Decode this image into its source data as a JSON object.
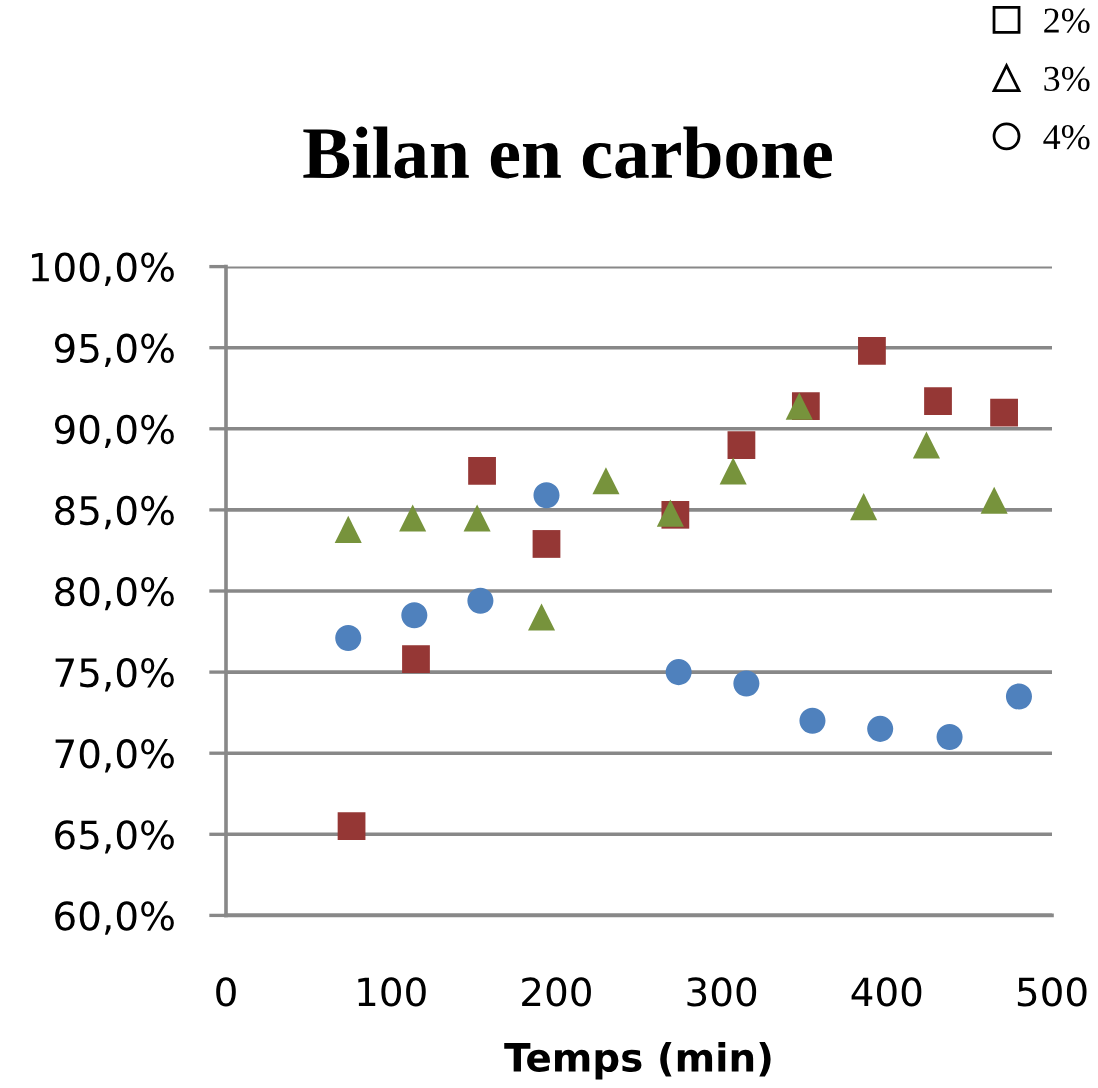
{
  "chart_data": {
    "type": "scatter",
    "title": "Bilan en carbone",
    "xlabel": "Temps (min)",
    "xlim": [
      0,
      500
    ],
    "xticks": [
      0,
      100,
      200,
      300,
      400,
      500
    ],
    "ylim": [
      60,
      100
    ],
    "yticks": [
      {
        "value": 60,
        "label": "60,0%"
      },
      {
        "value": 65,
        "label": "65,0%"
      },
      {
        "value": 70,
        "label": "70,0%"
      },
      {
        "value": 75,
        "label": "75,0%"
      },
      {
        "value": 80,
        "label": "80,0%"
      },
      {
        "value": 85,
        "label": "85,0%"
      },
      {
        "value": 90,
        "label": "90,0%"
      },
      {
        "value": 95,
        "label": "95,0%"
      },
      {
        "value": 100,
        "label": "100,0%"
      }
    ],
    "grid": "y",
    "legend": "top right",
    "series": [
      {
        "name": "2%",
        "color": "#953735",
        "marker": "square",
        "x": [
          76,
          115,
          155,
          194,
          272,
          312,
          351,
          391,
          431,
          471
        ],
        "values": [
          65.5,
          75.8,
          87.4,
          82.9,
          84.7,
          89.0,
          91.4,
          94.8,
          91.7,
          91.0
        ]
      },
      {
        "name": "3%",
        "color": "#77933c",
        "marker": "triangle",
        "x": [
          74,
          113,
          152,
          191,
          230,
          269,
          307,
          347,
          386,
          424,
          465
        ],
        "values": [
          83.8,
          84.5,
          84.5,
          78.4,
          86.8,
          84.8,
          87.4,
          91.4,
          85.2,
          89.0,
          85.6
        ]
      },
      {
        "name": "4%",
        "color": "#4f81bd",
        "marker": "circle",
        "x": [
          74,
          114,
          154,
          194,
          274,
          315,
          355,
          396,
          438,
          480
        ],
        "values": [
          77.1,
          78.5,
          79.4,
          85.9,
          75.0,
          74.3,
          72.0,
          71.5,
          71.0,
          73.5
        ]
      }
    ]
  }
}
